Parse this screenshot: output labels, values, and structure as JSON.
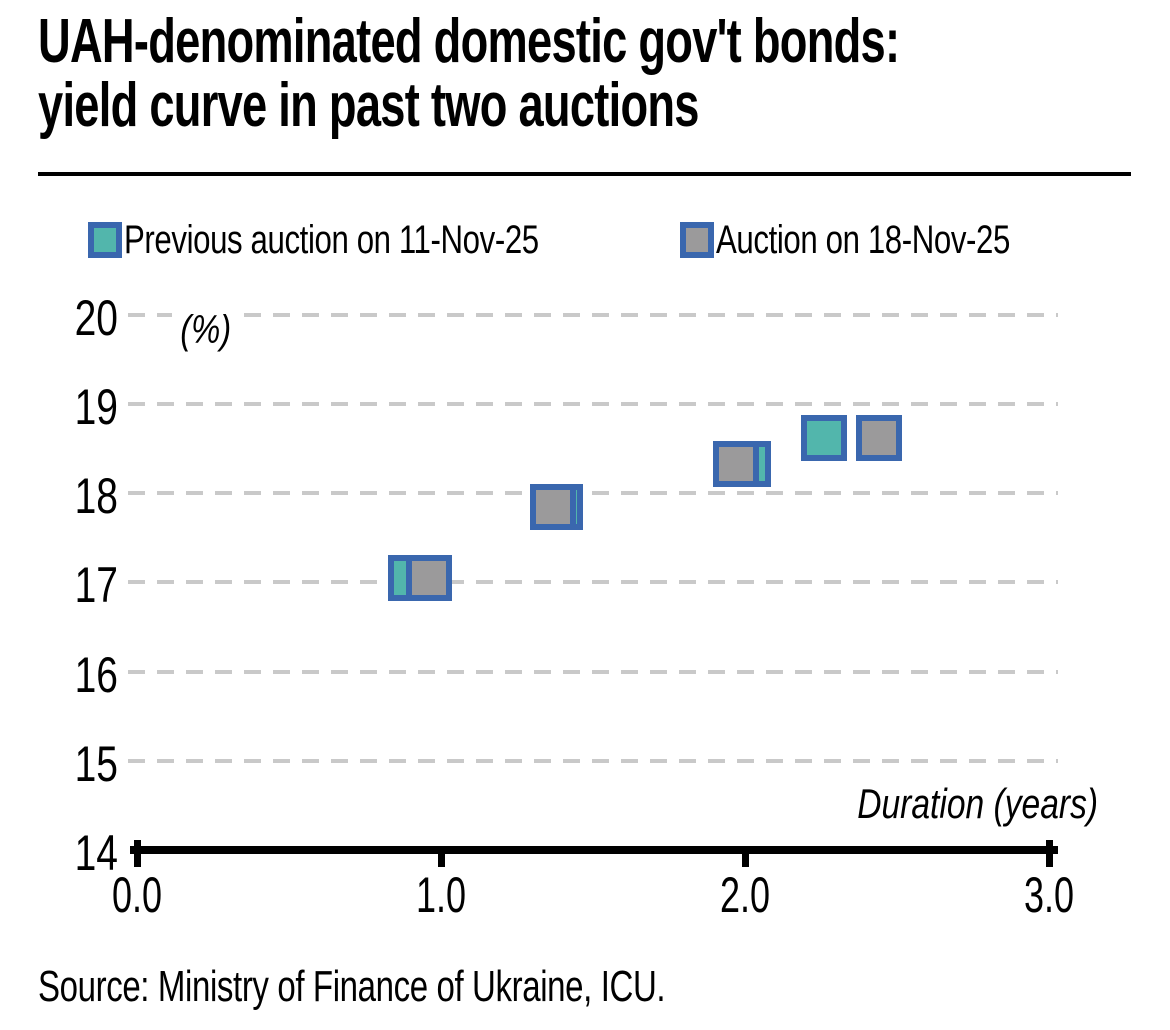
{
  "title": {
    "line1": "UAH-denominated domestic gov't bonds:",
    "line2": "yield curve in past two auctions"
  },
  "legend": {
    "items": [
      {
        "label": "Previous auction on 11-Nov-25",
        "fill": "#52b6ac"
      },
      {
        "label": "Auction on 18-Nov-25",
        "fill": "#9b9a9b"
      }
    ]
  },
  "source": "Source: Ministry of Finance of Ukraine, ICU.",
  "colors": {
    "teal_fill": "#52b6ac",
    "gray_fill": "#9b9a9b",
    "marker_border": "#3a67ae",
    "gridline": "#c9c9c9",
    "axis": "#000000"
  },
  "chart_data": {
    "type": "scatter",
    "title": "UAH-denominated domestic gov't bonds: yield curve in past two auctions",
    "xlabel": "Duration (years)",
    "ylabel": "(%)",
    "xlim": [
      0.0,
      3.0
    ],
    "ylim": [
      14,
      20
    ],
    "x_tick_labels": [
      "0.0",
      "1.0",
      "2.0",
      "3.0"
    ],
    "x_tick_values": [
      0,
      1,
      2,
      3
    ],
    "y_tick_values": [
      14,
      15,
      16,
      17,
      18,
      19,
      20
    ],
    "grid": "horizontal-dashed",
    "legend_position": "top",
    "marker": "square",
    "series": [
      {
        "name": "Previous auction on 11-Nov-25",
        "fill": "#52b6ac",
        "border": "#3a67ae",
        "points": [
          {
            "x": 0.9,
            "y": 17.05
          },
          {
            "x": 1.39,
            "y": 17.85
          },
          {
            "x": 2.01,
            "y": 18.33
          },
          {
            "x": 2.26,
            "y": 18.62
          }
        ]
      },
      {
        "name": "Auction on 18-Nov-25",
        "fill": "#9b9a9b",
        "border": "#3a67ae",
        "points": [
          {
            "x": 0.96,
            "y": 17.05
          },
          {
            "x": 1.37,
            "y": 17.85
          },
          {
            "x": 1.97,
            "y": 18.33
          },
          {
            "x": 2.44,
            "y": 18.62
          }
        ]
      }
    ]
  }
}
